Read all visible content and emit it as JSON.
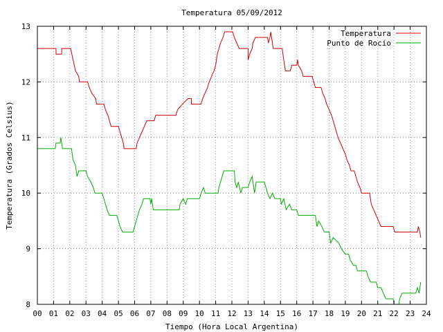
{
  "chart_data": {
    "type": "line",
    "title": "Temperatura 05/09/2012",
    "xlabel": "Tiempo (Hora Local Argentina)",
    "ylabel": "Temperatura (Grados Celsius)",
    "xlim": [
      0,
      24
    ],
    "ylim": [
      8,
      13
    ],
    "x_ticks": [
      "00",
      "01",
      "02",
      "03",
      "04",
      "05",
      "06",
      "07",
      "08",
      "09",
      "10",
      "11",
      "12",
      "13",
      "14",
      "15",
      "16",
      "17",
      "18",
      "19",
      "20",
      "21",
      "22",
      "23",
      "24"
    ],
    "y_ticks": [
      "8",
      "9",
      "10",
      "11",
      "12",
      "13"
    ],
    "grid": true,
    "legend_position": "top-right",
    "series": [
      {
        "name": "Temperatura",
        "color": "#cc0000",
        "points": [
          [
            0,
            12.6
          ],
          [
            1.15,
            12.6
          ],
          [
            1.15,
            12.5
          ],
          [
            1.5,
            12.5
          ],
          [
            1.5,
            12.6
          ],
          [
            2.05,
            12.6
          ],
          [
            2.2,
            12.4
          ],
          [
            2.35,
            12.2
          ],
          [
            2.55,
            12.1
          ],
          [
            2.6,
            12.0
          ],
          [
            3.1,
            12.0
          ],
          [
            3.2,
            11.9
          ],
          [
            3.35,
            11.8
          ],
          [
            3.6,
            11.7
          ],
          [
            3.65,
            11.6
          ],
          [
            4.1,
            11.6
          ],
          [
            4.2,
            11.5
          ],
          [
            4.35,
            11.4
          ],
          [
            4.45,
            11.3
          ],
          [
            4.55,
            11.2
          ],
          [
            5.0,
            11.2
          ],
          [
            5.1,
            11.1
          ],
          [
            5.2,
            11.0
          ],
          [
            5.3,
            10.9
          ],
          [
            5.35,
            10.8
          ],
          [
            6.1,
            10.8
          ],
          [
            6.15,
            10.9
          ],
          [
            6.3,
            11.0
          ],
          [
            6.45,
            11.1
          ],
          [
            6.6,
            11.2
          ],
          [
            6.75,
            11.3
          ],
          [
            7.2,
            11.3
          ],
          [
            7.3,
            11.4
          ],
          [
            8.55,
            11.4
          ],
          [
            8.65,
            11.5
          ],
          [
            8.95,
            11.6
          ],
          [
            9.3,
            11.7
          ],
          [
            9.5,
            11.7
          ],
          [
            9.5,
            11.6
          ],
          [
            10.1,
            11.6
          ],
          [
            10.2,
            11.7
          ],
          [
            10.35,
            11.8
          ],
          [
            10.5,
            11.9
          ],
          [
            10.6,
            12.0
          ],
          [
            10.75,
            12.1
          ],
          [
            10.9,
            12.2
          ],
          [
            11.0,
            12.3
          ],
          [
            11.1,
            12.5
          ],
          [
            11.2,
            12.6
          ],
          [
            11.3,
            12.7
          ],
          [
            11.45,
            12.8
          ],
          [
            11.55,
            12.9
          ],
          [
            12.05,
            12.9
          ],
          [
            12.15,
            12.8
          ],
          [
            12.3,
            12.7
          ],
          [
            12.45,
            12.6
          ],
          [
            13.0,
            12.6
          ],
          [
            13.0,
            12.4
          ],
          [
            13.1,
            12.5
          ],
          [
            13.25,
            12.6
          ],
          [
            13.3,
            12.7
          ],
          [
            13.45,
            12.8
          ],
          [
            14.2,
            12.8
          ],
          [
            14.25,
            12.7
          ],
          [
            14.35,
            12.8
          ],
          [
            14.4,
            12.9
          ],
          [
            14.5,
            12.7
          ],
          [
            14.55,
            12.6
          ],
          [
            15.1,
            12.6
          ],
          [
            15.2,
            12.4
          ],
          [
            15.3,
            12.2
          ],
          [
            15.6,
            12.2
          ],
          [
            15.7,
            12.3
          ],
          [
            16.0,
            12.3
          ],
          [
            16.05,
            12.4
          ],
          [
            16.1,
            12.3
          ],
          [
            16.3,
            12.2
          ],
          [
            16.4,
            12.1
          ],
          [
            16.95,
            12.1
          ],
          [
            17.05,
            12.0
          ],
          [
            17.15,
            11.9
          ],
          [
            17.5,
            11.9
          ],
          [
            17.6,
            11.8
          ],
          [
            17.75,
            11.7
          ],
          [
            17.85,
            11.6
          ],
          [
            18.0,
            11.5
          ],
          [
            18.15,
            11.4
          ],
          [
            18.25,
            11.3
          ],
          [
            18.35,
            11.2
          ],
          [
            18.45,
            11.1
          ],
          [
            18.55,
            11.0
          ],
          [
            18.7,
            10.9
          ],
          [
            18.85,
            10.8
          ],
          [
            19.0,
            10.7
          ],
          [
            19.1,
            10.6
          ],
          [
            19.25,
            10.5
          ],
          [
            19.35,
            10.4
          ],
          [
            19.55,
            10.4
          ],
          [
            19.65,
            10.3
          ],
          [
            19.75,
            10.2
          ],
          [
            19.9,
            10.1
          ],
          [
            20.0,
            10.0
          ],
          [
            20.5,
            10.0
          ],
          [
            20.6,
            9.8
          ],
          [
            20.75,
            9.7
          ],
          [
            20.9,
            9.6
          ],
          [
            21.05,
            9.5
          ],
          [
            21.2,
            9.4
          ],
          [
            21.95,
            9.4
          ],
          [
            22.05,
            9.3
          ],
          [
            22.5,
            9.3
          ],
          [
            23.0,
            9.3
          ],
          [
            23.45,
            9.3
          ],
          [
            23.5,
            9.4
          ],
          [
            23.6,
            9.3
          ],
          [
            23.65,
            9.2
          ]
        ]
      },
      {
        "name": "Punto de Rocío",
        "color": "#00aa00",
        "points": [
          [
            0,
            10.8
          ],
          [
            1.1,
            10.8
          ],
          [
            1.15,
            10.9
          ],
          [
            1.4,
            10.9
          ],
          [
            1.45,
            11.0
          ],
          [
            1.55,
            10.8
          ],
          [
            2.1,
            10.8
          ],
          [
            2.2,
            10.6
          ],
          [
            2.35,
            10.5
          ],
          [
            2.45,
            10.3
          ],
          [
            2.55,
            10.4
          ],
          [
            3.0,
            10.4
          ],
          [
            3.1,
            10.3
          ],
          [
            3.3,
            10.2
          ],
          [
            3.45,
            10.1
          ],
          [
            3.55,
            10.0
          ],
          [
            4.0,
            10.0
          ],
          [
            4.1,
            9.9
          ],
          [
            4.2,
            9.8
          ],
          [
            4.3,
            9.7
          ],
          [
            4.45,
            9.6
          ],
          [
            4.9,
            9.6
          ],
          [
            5.0,
            9.5
          ],
          [
            5.1,
            9.4
          ],
          [
            5.25,
            9.3
          ],
          [
            5.9,
            9.3
          ],
          [
            6.0,
            9.4
          ],
          [
            6.1,
            9.5
          ],
          [
            6.2,
            9.6
          ],
          [
            6.3,
            9.7
          ],
          [
            6.45,
            9.8
          ],
          [
            6.55,
            9.9
          ],
          [
            6.95,
            9.9
          ],
          [
            7.0,
            9.8
          ],
          [
            7.05,
            9.9
          ],
          [
            7.15,
            9.7
          ],
          [
            8.75,
            9.7
          ],
          [
            8.8,
            9.8
          ],
          [
            9.0,
            9.9
          ],
          [
            9.15,
            9.8
          ],
          [
            9.25,
            9.9
          ],
          [
            10.0,
            9.9
          ],
          [
            10.1,
            10.0
          ],
          [
            10.25,
            10.1
          ],
          [
            10.35,
            10.0
          ],
          [
            11.15,
            10.0
          ],
          [
            11.2,
            10.1
          ],
          [
            11.3,
            10.2
          ],
          [
            11.4,
            10.3
          ],
          [
            11.5,
            10.4
          ],
          [
            12.15,
            10.4
          ],
          [
            12.2,
            10.2
          ],
          [
            12.3,
            10.1
          ],
          [
            12.4,
            10.2
          ],
          [
            12.55,
            10.0
          ],
          [
            12.65,
            10.1
          ],
          [
            13.0,
            10.1
          ],
          [
            13.1,
            10.2
          ],
          [
            13.25,
            10.3
          ],
          [
            13.4,
            10.0
          ],
          [
            13.5,
            10.2
          ],
          [
            14.0,
            10.2
          ],
          [
            14.1,
            10.1
          ],
          [
            14.2,
            10.0
          ],
          [
            14.35,
            9.9
          ],
          [
            14.5,
            10.0
          ],
          [
            14.65,
            9.9
          ],
          [
            15.0,
            9.9
          ],
          [
            15.05,
            9.8
          ],
          [
            15.2,
            9.9
          ],
          [
            15.35,
            9.7
          ],
          [
            15.55,
            9.8
          ],
          [
            15.7,
            9.7
          ],
          [
            16.0,
            9.7
          ],
          [
            16.1,
            9.6
          ],
          [
            16.3,
            9.6
          ],
          [
            17.15,
            9.6
          ],
          [
            17.25,
            9.4
          ],
          [
            17.35,
            9.5
          ],
          [
            17.55,
            9.4
          ],
          [
            17.7,
            9.3
          ],
          [
            18.0,
            9.3
          ],
          [
            18.1,
            9.1
          ],
          [
            18.25,
            9.2
          ],
          [
            18.6,
            9.1
          ],
          [
            18.75,
            9.0
          ],
          [
            19.0,
            8.9
          ],
          [
            19.2,
            8.9
          ],
          [
            19.3,
            8.8
          ],
          [
            19.5,
            8.7
          ],
          [
            19.65,
            8.7
          ],
          [
            19.75,
            8.6
          ],
          [
            20.3,
            8.6
          ],
          [
            20.4,
            8.5
          ],
          [
            20.55,
            8.4
          ],
          [
            20.9,
            8.4
          ],
          [
            21.0,
            8.3
          ],
          [
            21.2,
            8.3
          ],
          [
            21.35,
            8.2
          ],
          [
            21.5,
            8.1
          ],
          [
            21.95,
            8.1
          ],
          [
            22.0,
            8.0
          ],
          [
            22.3,
            8.0
          ],
          [
            22.35,
            8.1
          ],
          [
            22.5,
            8.2
          ],
          [
            23.0,
            8.2
          ],
          [
            23.35,
            8.2
          ],
          [
            23.45,
            8.3
          ],
          [
            23.55,
            8.2
          ],
          [
            23.65,
            8.4
          ]
        ]
      }
    ]
  }
}
